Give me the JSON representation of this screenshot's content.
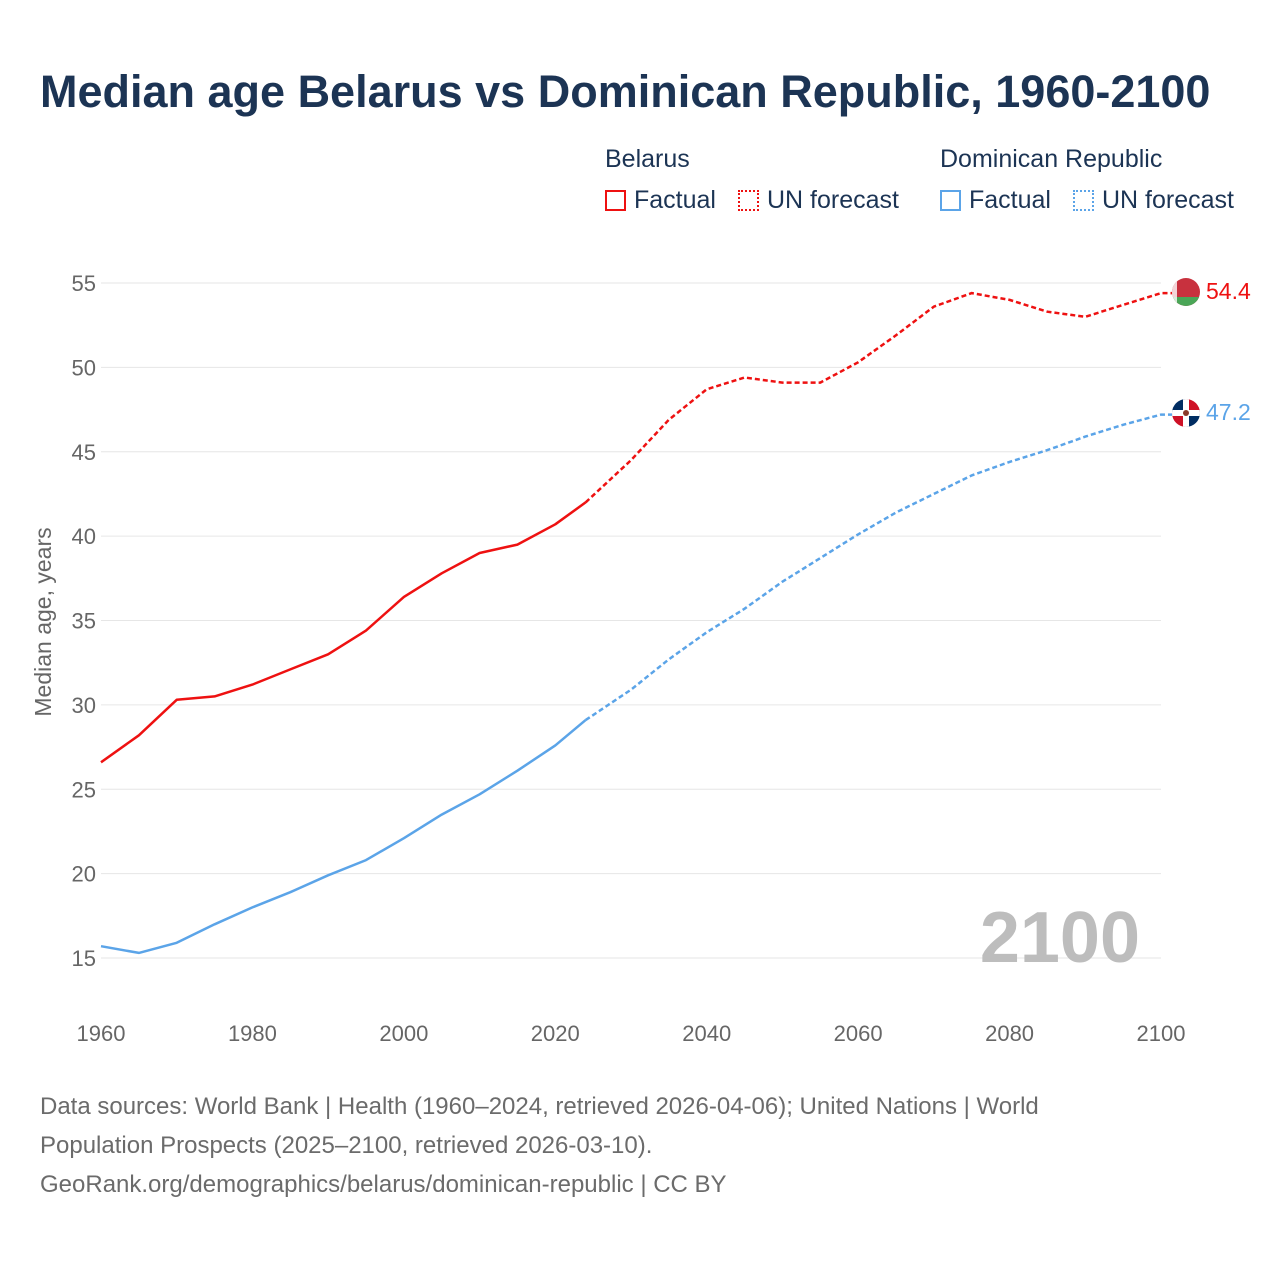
{
  "title": "Median age Belarus vs Dominican Republic, 1960-2100",
  "legend": {
    "groups": [
      {
        "name": "Belarus",
        "color": "#ee1111",
        "factual": "Factual",
        "forecast": "UN forecast"
      },
      {
        "name": "Dominican Republic",
        "color": "#5ba4e8",
        "factual": "Factual",
        "forecast": "UN forecast"
      }
    ]
  },
  "year_watermark": "2100",
  "footer": {
    "line1": "Data sources: World Bank | Health (1960–2024, retrieved 2026-04-06); United Nations | World",
    "line2": "Population Prospects (2025–2100, retrieved 2026-03-10).",
    "line3": "GeoRank.org/demographics/belarus/dominican-republic | CC BY"
  },
  "chart_data": {
    "type": "line",
    "title": "Median age Belarus vs Dominican Republic, 1960-2100",
    "xlabel": "",
    "ylabel": "Median age, years",
    "xlim": [
      1960,
      2100
    ],
    "ylim": [
      15,
      55
    ],
    "xticks": [
      1960,
      1980,
      2000,
      2020,
      2040,
      2060,
      2080,
      2100
    ],
    "yticks": [
      15,
      20,
      25,
      30,
      35,
      40,
      45,
      50,
      55
    ],
    "grid": true,
    "forecast_start": 2024,
    "x": [
      1960,
      1965,
      1970,
      1975,
      1980,
      1985,
      1990,
      1995,
      2000,
      2005,
      2010,
      2015,
      2020,
      2024,
      2030,
      2035,
      2040,
      2045,
      2050,
      2055,
      2060,
      2065,
      2070,
      2075,
      2080,
      2085,
      2090,
      2095,
      2100
    ],
    "series": [
      {
        "name": "Belarus",
        "color": "#ee1111",
        "end_label": "54.4",
        "values": [
          26.6,
          28.2,
          30.3,
          30.5,
          31.2,
          32.1,
          33.0,
          34.4,
          36.4,
          37.8,
          39.0,
          39.5,
          40.7,
          42.0,
          44.5,
          46.9,
          48.7,
          49.4,
          49.1,
          49.1,
          50.3,
          51.9,
          53.6,
          54.4,
          54.0,
          53.3,
          53.0,
          53.7,
          54.4
        ]
      },
      {
        "name": "Dominican Republic",
        "color": "#5ba4e8",
        "end_label": "47.2",
        "values": [
          15.7,
          15.3,
          15.9,
          17.0,
          18.0,
          18.9,
          19.9,
          20.8,
          22.1,
          23.5,
          24.7,
          26.1,
          27.6,
          29.1,
          30.9,
          32.7,
          34.3,
          35.7,
          37.3,
          38.7,
          40.1,
          41.4,
          42.5,
          43.6,
          44.4,
          45.1,
          45.9,
          46.6,
          47.2
        ]
      }
    ]
  }
}
